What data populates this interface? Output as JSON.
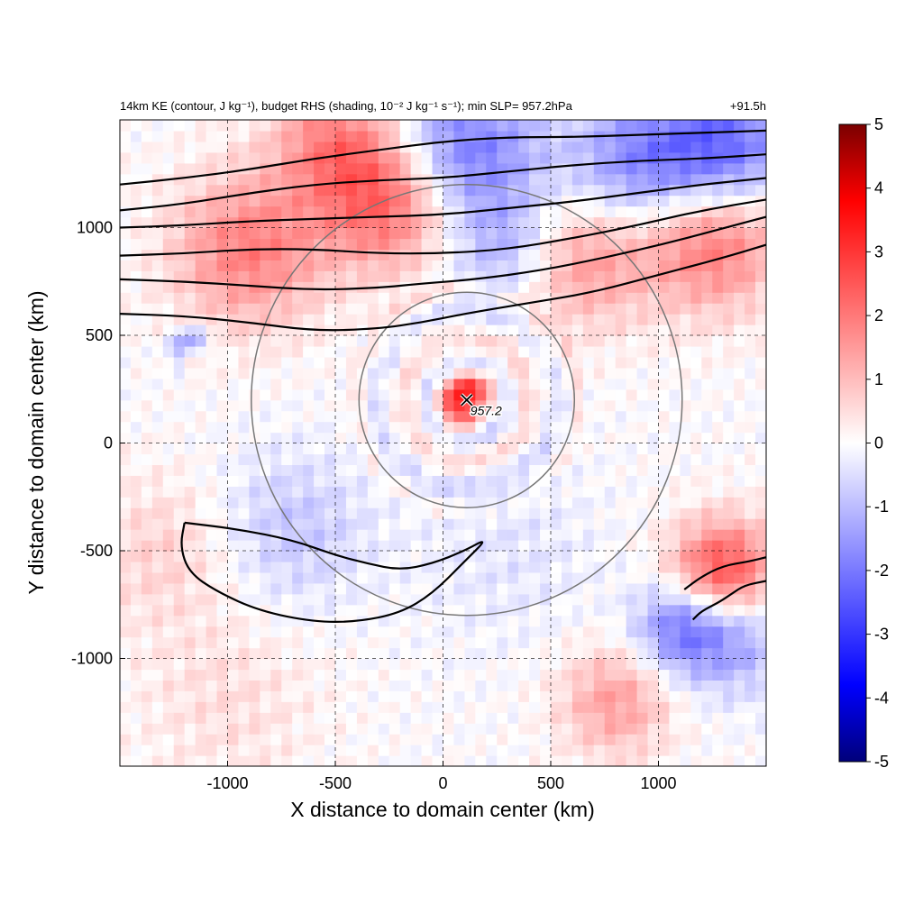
{
  "chart_data": {
    "type": "heatmap",
    "title_left": "14km KE (contour, J kg⁻¹), budget RHS (shading, 10⁻² J kg⁻¹ s⁻¹); min SLP= 957.2hPa",
    "title_right": "+91.5h",
    "xlabel": "X distance to domain center (km)",
    "ylabel": "Y distance to domain center (km)",
    "xlim": [
      -1500,
      1500
    ],
    "ylim": [
      -1500,
      1500
    ],
    "x_ticks": [
      -1000,
      -500,
      0,
      500,
      1000
    ],
    "y_ticks": [
      -1000,
      -500,
      0,
      500,
      1000
    ],
    "x_tick_labels": [
      "-1000",
      "-500",
      "0",
      "500",
      "1000"
    ],
    "y_tick_labels": [
      "-1000",
      "-500",
      "0",
      "500",
      "1000"
    ],
    "grid": "dashed at ticks",
    "colorbar": {
      "min": -5,
      "max": 5,
      "ticks": [
        5,
        4,
        3,
        2,
        1,
        0,
        -1,
        -2,
        -3,
        -4,
        -5
      ],
      "tick_labels": [
        "5",
        "4",
        "3",
        "2",
        "1",
        "0",
        "-1",
        "-2",
        "-3",
        "-4",
        "-5"
      ],
      "colors": [
        "#00007a",
        "#0000ff",
        "#ffffff",
        "#ff0000",
        "#7a0000"
      ]
    },
    "storm_center": {
      "x": 110,
      "y": 200,
      "label": "957.2"
    },
    "range_circles_km": [
      500,
      1000
    ],
    "contour_color": "#000000",
    "circle_color": "#777777",
    "shading_features": [
      {
        "x": 120,
        "y": 190,
        "sigma": 90,
        "value": 3.5
      },
      {
        "x": 170,
        "y": 150,
        "sigma": 60,
        "value": -2.0
      },
      {
        "x": -1170,
        "y": 440,
        "sigma": 60,
        "value": -2.5
      },
      {
        "x": -1150,
        "y": 400,
        "sigma": 45,
        "value": 2.0
      },
      {
        "x": -250,
        "y": 1120,
        "sigma": 220,
        "value": 2.5
      },
      {
        "x": -900,
        "y": 900,
        "sigma": 250,
        "value": 2.0
      },
      {
        "x": 100,
        "y": 1350,
        "sigma": 250,
        "value": -2.2
      },
      {
        "x": 1300,
        "y": 1360,
        "sigma": 220,
        "value": -2.5
      },
      {
        "x": 900,
        "y": 1300,
        "sigma": 220,
        "value": -1.8
      },
      {
        "x": 1250,
        "y": 950,
        "sigma": 230,
        "value": 2.3
      },
      {
        "x": 650,
        "y": 850,
        "sigma": 220,
        "value": 1.6
      },
      {
        "x": -500,
        "y": 1400,
        "sigma": 200,
        "value": 1.8
      },
      {
        "x": 300,
        "y": 900,
        "sigma": 180,
        "value": -1.2
      },
      {
        "x": 1300,
        "y": -600,
        "sigma": 170,
        "value": 3.0
      },
      {
        "x": 1100,
        "y": -850,
        "sigma": 150,
        "value": -2.0
      },
      {
        "x": 1350,
        "y": -900,
        "sigma": 180,
        "value": -1.5
      },
      {
        "x": 800,
        "y": -1200,
        "sigma": 180,
        "value": 1.5
      },
      {
        "x": -700,
        "y": -400,
        "sigma": 250,
        "value": -0.9
      },
      {
        "x": -1300,
        "y": -500,
        "sigma": 250,
        "value": 0.7
      },
      {
        "x": 300,
        "y": -500,
        "sigma": 300,
        "value": -0.4
      },
      {
        "x": -1000,
        "y": -1200,
        "sigma": 300,
        "value": 0.5
      }
    ],
    "ke_contours_km": [
      [
        [
          -1500,
          600
        ],
        [
          -1200,
          590
        ],
        [
          -900,
          560
        ],
        [
          -600,
          520
        ],
        [
          -300,
          530
        ],
        [
          -100,
          560
        ],
        [
          100,
          600
        ],
        [
          400,
          650
        ],
        [
          700,
          700
        ],
        [
          1000,
          780
        ],
        [
          1300,
          860
        ],
        [
          1500,
          920
        ]
      ],
      [
        [
          -1500,
          760
        ],
        [
          -1200,
          750
        ],
        [
          -900,
          730
        ],
        [
          -600,
          710
        ],
        [
          -300,
          720
        ],
        [
          -100,
          740
        ],
        [
          150,
          760
        ],
        [
          450,
          800
        ],
        [
          750,
          860
        ],
        [
          1050,
          930
        ],
        [
          1350,
          1010
        ],
        [
          1500,
          1050
        ]
      ],
      [
        [
          -1500,
          870
        ],
        [
          -1200,
          880
        ],
        [
          -900,
          900
        ],
        [
          -600,
          900
        ],
        [
          -300,
          880
        ],
        [
          0,
          880
        ],
        [
          300,
          900
        ],
        [
          600,
          950
        ],
        [
          900,
          1010
        ],
        [
          1200,
          1080
        ],
        [
          1500,
          1130
        ]
      ],
      [
        [
          -1500,
          1000
        ],
        [
          -1200,
          1010
        ],
        [
          -900,
          1030
        ],
        [
          -600,
          1040
        ],
        [
          -300,
          1050
        ],
        [
          0,
          1060
        ],
        [
          300,
          1090
        ],
        [
          600,
          1120
        ],
        [
          900,
          1160
        ],
        [
          1200,
          1200
        ],
        [
          1500,
          1230
        ]
      ],
      [
        [
          -1500,
          1080
        ],
        [
          -1200,
          1110
        ],
        [
          -900,
          1160
        ],
        [
          -600,
          1200
        ],
        [
          -300,
          1220
        ],
        [
          0,
          1230
        ],
        [
          300,
          1260
        ],
        [
          600,
          1290
        ],
        [
          900,
          1310
        ],
        [
          1200,
          1320
        ],
        [
          1500,
          1340
        ]
      ],
      [
        [
          -1500,
          1200
        ],
        [
          -1200,
          1230
        ],
        [
          -900,
          1270
        ],
        [
          -600,
          1320
        ],
        [
          -300,
          1360
        ],
        [
          0,
          1400
        ],
        [
          300,
          1420
        ],
        [
          600,
          1420
        ],
        [
          900,
          1430
        ],
        [
          1200,
          1440
        ],
        [
          1500,
          1450
        ]
      ],
      [
        [
          -1200,
          -370
        ],
        [
          -950,
          -400
        ],
        [
          -700,
          -450
        ],
        [
          -500,
          -520
        ],
        [
          -350,
          -560
        ],
        [
          -200,
          -590
        ],
        [
          -50,
          -560
        ],
        [
          100,
          -500
        ],
        [
          210,
          -440
        ],
        [
          100,
          -550
        ],
        [
          -50,
          -700
        ],
        [
          -200,
          -790
        ],
        [
          -400,
          -830
        ],
        [
          -600,
          -830
        ],
        [
          -850,
          -780
        ],
        [
          -1050,
          -690
        ],
        [
          -1180,
          -600
        ],
        [
          -1220,
          -480
        ],
        [
          -1200,
          -370
        ]
      ],
      [
        [
          1120,
          -680
        ],
        [
          1200,
          -620
        ],
        [
          1300,
          -570
        ],
        [
          1420,
          -550
        ],
        [
          1500,
          -530
        ]
      ],
      [
        [
          1160,
          -820
        ],
        [
          1200,
          -780
        ],
        [
          1280,
          -740
        ],
        [
          1340,
          -700
        ],
        [
          1400,
          -660
        ],
        [
          1500,
          -640
        ]
      ]
    ]
  }
}
